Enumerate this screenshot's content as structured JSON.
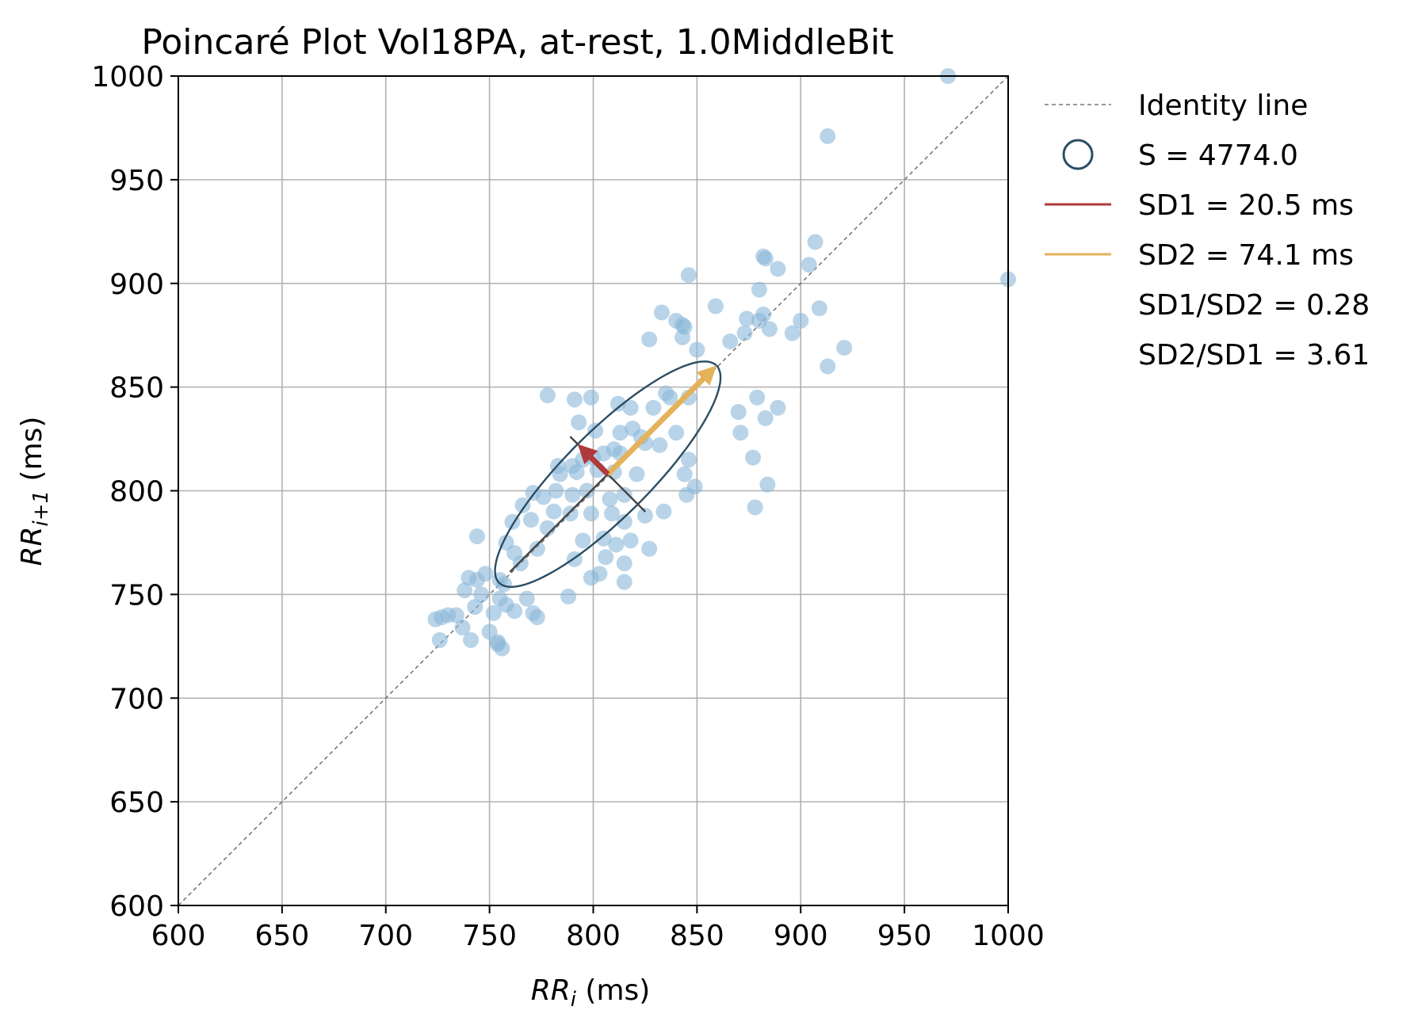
{
  "chart_data": {
    "type": "scatter",
    "title": "Poincaré Plot Vol18PA, at-rest, 1.0MiddleBit",
    "xlabel": {
      "var": "RR",
      "sub": "i",
      "unit": " (ms)"
    },
    "ylabel": {
      "var": "RR",
      "sub": "i+1",
      "unit": " (ms)"
    },
    "xlim": [
      600,
      1000
    ],
    "ylim": [
      600,
      1000
    ],
    "xticks": [
      "600",
      "650",
      "700",
      "750",
      "800",
      "850",
      "900",
      "950",
      "1000"
    ],
    "yticks": [
      "600",
      "650",
      "700",
      "750",
      "800",
      "850",
      "900",
      "950",
      "1000"
    ],
    "grid": true,
    "legend_position": "outside-right",
    "colors": {
      "points": "#8ab8d8",
      "ellipse": "#2a4d63",
      "sd1": "#b03a3a",
      "sd2": "#e4b25a",
      "identity": "#777777",
      "axes_line": "#444444"
    },
    "center": [
      807,
      808
    ],
    "sd1": 20.5,
    "sd2": 74.1,
    "legend": [
      {
        "marker": "dashed-line",
        "label": "Identity line"
      },
      {
        "marker": "circle",
        "label": "S = 4774.0"
      },
      {
        "marker": "red-line",
        "label": "SD1 = 20.5 ms"
      },
      {
        "marker": "yellow-line",
        "label": "SD2 = 74.1 ms"
      },
      {
        "marker": "none",
        "label": "SD1/SD2 = 0.28"
      },
      {
        "marker": "none",
        "label": "SD2/SD1 = 3.61"
      }
    ],
    "points": [
      [
        971,
        1000
      ],
      [
        1000,
        902
      ],
      [
        913,
        971
      ],
      [
        907,
        920
      ],
      [
        904,
        909
      ],
      [
        909,
        888
      ],
      [
        900,
        882
      ],
      [
        913,
        860
      ],
      [
        921,
        869
      ],
      [
        896,
        876
      ],
      [
        885,
        878
      ],
      [
        882,
        913
      ],
      [
        883,
        912
      ],
      [
        889,
        907
      ],
      [
        880,
        897
      ],
      [
        874,
        883
      ],
      [
        880,
        882
      ],
      [
        882,
        885
      ],
      [
        859,
        889
      ],
      [
        846,
        904
      ],
      [
        833,
        886
      ],
      [
        840,
        882
      ],
      [
        843,
        880
      ],
      [
        844,
        879
      ],
      [
        827,
        873
      ],
      [
        843,
        874
      ],
      [
        850,
        868
      ],
      [
        866,
        872
      ],
      [
        873,
        876
      ],
      [
        778,
        846
      ],
      [
        791,
        844
      ],
      [
        799,
        845
      ],
      [
        812,
        842
      ],
      [
        818,
        840
      ],
      [
        829,
        840
      ],
      [
        835,
        847
      ],
      [
        837,
        845
      ],
      [
        846,
        845
      ],
      [
        870,
        838
      ],
      [
        879,
        845
      ],
      [
        883,
        835
      ],
      [
        889,
        840
      ],
      [
        793,
        833
      ],
      [
        801,
        829
      ],
      [
        813,
        828
      ],
      [
        819,
        830
      ],
      [
        823,
        826
      ],
      [
        840,
        828
      ],
      [
        871,
        828
      ],
      [
        832,
        822
      ],
      [
        825,
        823
      ],
      [
        810,
        820
      ],
      [
        805,
        818
      ],
      [
        813,
        818
      ],
      [
        800,
        816
      ],
      [
        783,
        812
      ],
      [
        790,
        812
      ],
      [
        795,
        815
      ],
      [
        784,
        808
      ],
      [
        792,
        809
      ],
      [
        802,
        810
      ],
      [
        810,
        809
      ],
      [
        821,
        808
      ],
      [
        846,
        815
      ],
      [
        844,
        808
      ],
      [
        877,
        816
      ],
      [
        884,
        803
      ],
      [
        878,
        792
      ],
      [
        849,
        802
      ],
      [
        845,
        798
      ],
      [
        815,
        798
      ],
      [
        808,
        796
      ],
      [
        797,
        800
      ],
      [
        790,
        798
      ],
      [
        782,
        800
      ],
      [
        776,
        797
      ],
      [
        771,
        799
      ],
      [
        766,
        793
      ],
      [
        761,
        785
      ],
      [
        781,
        790
      ],
      [
        789,
        789
      ],
      [
        799,
        789
      ],
      [
        809,
        789
      ],
      [
        815,
        785
      ],
      [
        825,
        788
      ],
      [
        834,
        790
      ],
      [
        770,
        786
      ],
      [
        778,
        782
      ],
      [
        795,
        776
      ],
      [
        805,
        777
      ],
      [
        818,
        776
      ],
      [
        811,
        774
      ],
      [
        827,
        772
      ],
      [
        758,
        775
      ],
      [
        744,
        778
      ],
      [
        762,
        770
      ],
      [
        773,
        772
      ],
      [
        791,
        767
      ],
      [
        765,
        765
      ],
      [
        806,
        768
      ],
      [
        815,
        765
      ],
      [
        799,
        758
      ],
      [
        803,
        760
      ],
      [
        815,
        756
      ],
      [
        755,
        757
      ],
      [
        757,
        755
      ],
      [
        748,
        760
      ],
      [
        744,
        757
      ],
      [
        740,
        758
      ],
      [
        738,
        752
      ],
      [
        746,
        750
      ],
      [
        755,
        748
      ],
      [
        768,
        748
      ],
      [
        788,
        749
      ],
      [
        758,
        745
      ],
      [
        762,
        742
      ],
      [
        771,
        741
      ],
      [
        773,
        739
      ],
      [
        752,
        741
      ],
      [
        743,
        744
      ],
      [
        734,
        740
      ],
      [
        727,
        739
      ],
      [
        730,
        740
      ],
      [
        724,
        738
      ],
      [
        737,
        734
      ],
      [
        741,
        728
      ],
      [
        754,
        727
      ],
      [
        750,
        732
      ],
      [
        726,
        728
      ],
      [
        756,
        724
      ],
      [
        754,
        726
      ]
    ]
  }
}
